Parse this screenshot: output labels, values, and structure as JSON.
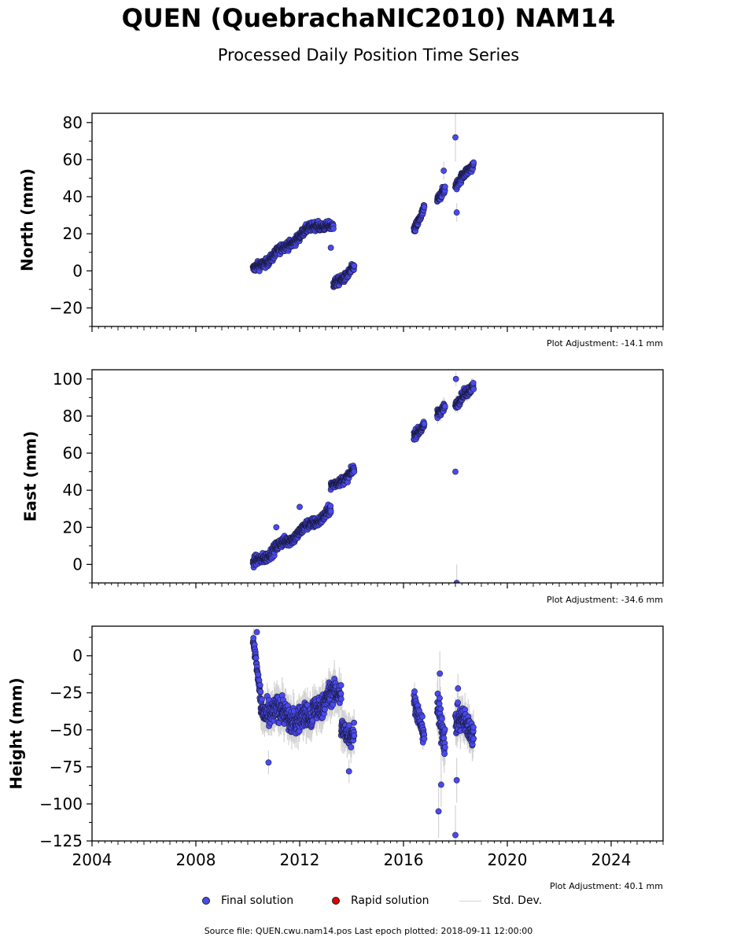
{
  "title": "QUEN (QuebrachaNIC2010) NAM14",
  "subtitle": "Processed Daily Position Time Series",
  "source_note": "Source file: QUEN.cwu.nam14.pos  Last epoch plotted: 2018-09-11 12:00:00",
  "legend": {
    "final": "Final solution",
    "rapid": "Rapid solution",
    "std": "Std. Dev."
  },
  "colors": {
    "final": "#4a4af0",
    "rapid": "#e00000",
    "std": "#d3d3d3"
  },
  "chart_data": [
    {
      "type": "scatter",
      "ylabel": "North (mm)",
      "adjustment": "Plot Adjustment: -14.1 mm",
      "xlim": [
        2004,
        2026
      ],
      "ylim": [
        -30,
        85
      ],
      "yticks": [
        -20,
        0,
        20,
        40,
        60,
        80
      ],
      "ytick_labels": [
        "−20",
        "0",
        "20",
        "40",
        "60",
        "80"
      ],
      "xticks": [
        2004,
        2008,
        2012,
        2016,
        2020,
        2024
      ],
      "xtick_labels": [],
      "segments": [
        {
          "x0": 2010.2,
          "x1": 2012.7,
          "y0": 0,
          "y1": 26,
          "noise": 3,
          "sd": 0
        },
        {
          "x0": 2012.7,
          "x1": 2013.3,
          "y0": 25,
          "y1": 23,
          "noise": 3,
          "sd": 0
        },
        {
          "x0": 2013.3,
          "x1": 2014.1,
          "y0": -8,
          "y1": 2,
          "noise": 3,
          "sd": 0
        },
        {
          "x0": 2016.4,
          "x1": 2016.8,
          "y0": 21,
          "y1": 35,
          "noise": 3,
          "sd": 0
        },
        {
          "x0": 2017.3,
          "x1": 2017.6,
          "y0": 37,
          "y1": 45,
          "noise": 3,
          "sd": 0
        },
        {
          "x0": 2018.0,
          "x1": 2018.7,
          "y0": 45,
          "y1": 58,
          "noise": 3,
          "sd": 0
        }
      ],
      "outliers": [
        {
          "x": 2018.0,
          "y": 72,
          "sd": 13
        },
        {
          "x": 2018.05,
          "y": 31.5,
          "sd": 5
        },
        {
          "x": 2013.2,
          "y": 12.5,
          "sd": 0
        },
        {
          "x": 2017.55,
          "y": 54,
          "sd": 5
        }
      ]
    },
    {
      "type": "scatter",
      "ylabel": "East (mm)",
      "adjustment": "Plot Adjustment: -34.6 mm",
      "xlim": [
        2004,
        2026
      ],
      "ylim": [
        -10,
        105
      ],
      "yticks": [
        0,
        20,
        40,
        60,
        80,
        100
      ],
      "ytick_labels": [
        "0",
        "20",
        "40",
        "60",
        "80",
        "100"
      ],
      "xticks": [
        2004,
        2008,
        2012,
        2016,
        2020,
        2024
      ],
      "xtick_labels": [],
      "segments": [
        {
          "x0": 2010.2,
          "x1": 2013.2,
          "y0": 0,
          "y1": 29,
          "noise": 3.5,
          "sd": 0
        },
        {
          "x0": 2013.2,
          "x1": 2014.1,
          "y0": 41,
          "y1": 51,
          "noise": 3,
          "sd": 0
        },
        {
          "x0": 2016.4,
          "x1": 2016.8,
          "y0": 69,
          "y1": 76,
          "noise": 3,
          "sd": 0
        },
        {
          "x0": 2017.3,
          "x1": 2017.6,
          "y0": 80,
          "y1": 86,
          "noise": 3,
          "sd": 3
        },
        {
          "x0": 2018.0,
          "x1": 2018.7,
          "y0": 85,
          "y1": 97,
          "noise": 3,
          "sd": 3
        }
      ],
      "outliers": [
        {
          "x": 2018.0,
          "y": 50,
          "sd": 0
        },
        {
          "x": 2018.05,
          "y": -10,
          "sd": 10
        },
        {
          "x": 2018.02,
          "y": 100,
          "sd": 4
        },
        {
          "x": 2011.1,
          "y": 20,
          "sd": 0
        },
        {
          "x": 2012.0,
          "y": 31,
          "sd": 0
        }
      ]
    },
    {
      "type": "scatter",
      "ylabel": "Height (mm)",
      "adjustment": "Plot Adjustment: 40.1 mm",
      "xlim": [
        2004,
        2026
      ],
      "ylim": [
        -125,
        20
      ],
      "yticks": [
        -125,
        -100,
        -75,
        -50,
        -25,
        0
      ],
      "ytick_labels": [
        "−125",
        "−100",
        "−75",
        "−50",
        "−25",
        "0"
      ],
      "xticks": [
        2004,
        2008,
        2012,
        2016,
        2020,
        2024
      ],
      "xtick_labels": [
        "2004",
        "2008",
        "2012",
        "2016",
        "2020",
        "2024"
      ],
      "segments": [
        {
          "x0": 2010.2,
          "x1": 2010.5,
          "y0": 10,
          "y1": -28,
          "noise": 6,
          "sd": 8
        },
        {
          "x0": 2010.5,
          "x1": 2012.5,
          "y0": -35,
          "y1": -45,
          "noise": 11,
          "sd": 10
        },
        {
          "x0": 2012.5,
          "x1": 2013.6,
          "y0": -35,
          "y1": -25,
          "noise": 10,
          "sd": 10
        },
        {
          "x0": 2013.6,
          "x1": 2014.1,
          "y0": -45,
          "y1": -55,
          "noise": 10,
          "sd": 10
        },
        {
          "x0": 2016.4,
          "x1": 2016.8,
          "y0": -30,
          "y1": -50,
          "noise": 9,
          "sd": 6
        },
        {
          "x0": 2017.3,
          "x1": 2017.6,
          "y0": -40,
          "y1": -55,
          "noise": 14,
          "sd": 12
        },
        {
          "x0": 2018.0,
          "x1": 2018.7,
          "y0": -45,
          "y1": -50,
          "noise": 11,
          "sd": 10
        }
      ],
      "outliers": [
        {
          "x": 2010.8,
          "y": -72,
          "sd": 8
        },
        {
          "x": 2010.35,
          "y": 16,
          "sd": 0
        },
        {
          "x": 2017.35,
          "y": -105,
          "sd": 18
        },
        {
          "x": 2017.45,
          "y": -87,
          "sd": 15
        },
        {
          "x": 2018.0,
          "y": -121,
          "sd": 20
        },
        {
          "x": 2018.05,
          "y": -84,
          "sd": 15
        },
        {
          "x": 2017.4,
          "y": -12,
          "sd": 15
        },
        {
          "x": 2018.1,
          "y": -22,
          "sd": 10
        },
        {
          "x": 2013.9,
          "y": -78,
          "sd": 8
        }
      ]
    }
  ]
}
